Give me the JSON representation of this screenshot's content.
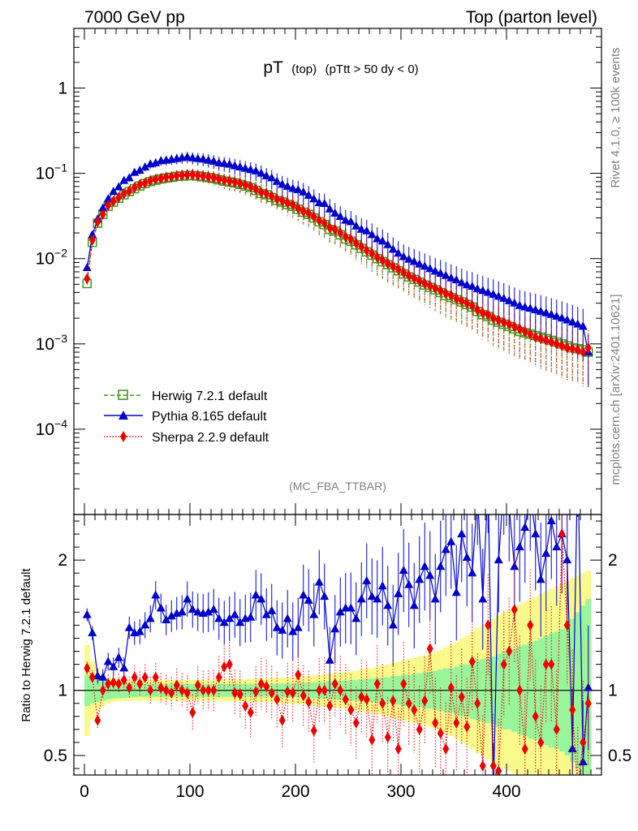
{
  "header": {
    "left": "7000 GeV pp",
    "right": "Top (parton level)"
  },
  "plot_title": {
    "main": "pT",
    "sub1": "(top)",
    "sub2": "(pTtt > 50 dy < 0)"
  },
  "side_labels": {
    "rivet": "Rivet 4.1.0, ≥ 100k events",
    "mcplots": "mcplots.cern.ch [arXiv:2401.10621]"
  },
  "analysis_tag": "(MC_FBA_TTBAR)",
  "ratio_ylabel": "Ratio to Herwig 7.2.1 default",
  "colors": {
    "herwig": "#3f9a1c",
    "pythia": "#0000cc",
    "sherpa": "#ee0000",
    "band_inner": "#99f599",
    "band_outer": "#fafa8c"
  },
  "chart_data": [
    {
      "type": "line",
      "panel": "main",
      "yscale": "log",
      "xlim": [
        -10,
        490
      ],
      "ylim": [
        1e-05,
        5
      ],
      "yticks": [
        {
          "value": 1,
          "label": "1"
        },
        {
          "value": 0.1,
          "label": "10",
          "exp": "−1"
        },
        {
          "value": 0.01,
          "label": "10",
          "exp": "−2"
        },
        {
          "value": 0.001,
          "label": "10",
          "exp": "−3"
        },
        {
          "value": 0.0001,
          "label": "10",
          "exp": "−4"
        }
      ],
      "legend_position": "lower-left",
      "x": [
        2.5,
        7.5,
        12.5,
        17.5,
        22.5,
        27.5,
        32.5,
        37.5,
        42.5,
        47.5,
        52.5,
        57.5,
        62.5,
        67.5,
        72.5,
        77.5,
        82.5,
        87.5,
        92.5,
        97.5,
        102.5,
        107.5,
        112.5,
        117.5,
        122.5,
        127.5,
        132.5,
        137.5,
        142.5,
        147.5,
        152.5,
        157.5,
        162.5,
        167.5,
        172.5,
        177.5,
        182.5,
        187.5,
        192.5,
        197.5,
        202.5,
        207.5,
        212.5,
        217.5,
        222.5,
        227.5,
        232.5,
        237.5,
        242.5,
        247.5,
        252.5,
        257.5,
        262.5,
        267.5,
        272.5,
        277.5,
        282.5,
        287.5,
        292.5,
        297.5,
        302.5,
        307.5,
        312.5,
        317.5,
        322.5,
        327.5,
        332.5,
        337.5,
        342.5,
        347.5,
        352.5,
        357.5,
        362.5,
        367.5,
        372.5,
        377.5,
        382.5,
        387.5,
        392.5,
        397.5,
        402.5,
        407.5,
        412.5,
        417.5,
        422.5,
        427.5,
        432.5,
        437.5,
        442.5,
        447.5,
        452.5,
        457.5,
        462.5,
        467.5,
        472.5,
        477.5
      ],
      "series": [
        {
          "name": "Herwig 7.2.1 default",
          "marker": "open-square",
          "style": "dashed",
          "values": [
            0.0051,
            0.0155,
            0.026,
            0.033,
            0.041,
            0.046,
            0.051,
            0.056,
            0.061,
            0.066,
            0.071,
            0.076,
            0.08,
            0.083,
            0.086,
            0.088,
            0.09,
            0.092,
            0.093,
            0.094,
            0.094,
            0.093,
            0.091,
            0.089,
            0.087,
            0.084,
            0.081,
            0.079,
            0.077,
            0.074,
            0.071,
            0.068,
            0.063,
            0.058,
            0.056,
            0.052,
            0.048,
            0.046,
            0.043,
            0.041,
            0.038,
            0.035,
            0.033,
            0.03,
            0.027,
            0.025,
            0.022,
            0.021,
            0.019,
            0.017,
            0.016,
            0.0145,
            0.0132,
            0.012,
            0.011,
            0.01,
            0.0092,
            0.0085,
            0.0078,
            0.0072,
            0.0066,
            0.0061,
            0.0057,
            0.0053,
            0.0049,
            0.0046,
            0.0043,
            0.004,
            0.0037,
            0.0035,
            0.0033,
            0.0031,
            0.0029,
            0.0027,
            0.0024,
            0.0022,
            0.0021,
            0.0019,
            0.0018,
            0.0017,
            0.0016,
            0.0015,
            0.0014,
            0.00135,
            0.0013,
            0.00125,
            0.0012,
            0.00115,
            0.0011,
            0.00105,
            0.001,
            0.00095,
            0.0009,
            0.00088,
            0.00085,
            0.0008
          ]
        },
        {
          "name": "Pythia 8.165 default",
          "marker": "filled-triangle",
          "style": "solid",
          "values": [
            0.0078,
            0.019,
            0.029,
            0.039,
            0.05,
            0.061,
            0.069,
            0.082,
            0.088,
            0.102,
            0.108,
            0.118,
            0.128,
            0.132,
            0.14,
            0.142,
            0.145,
            0.148,
            0.152,
            0.155,
            0.151,
            0.148,
            0.146,
            0.142,
            0.138,
            0.132,
            0.13,
            0.127,
            0.122,
            0.118,
            0.114,
            0.11,
            0.106,
            0.1,
            0.093,
            0.088,
            0.08,
            0.074,
            0.07,
            0.066,
            0.064,
            0.06,
            0.055,
            0.05,
            0.045,
            0.044,
            0.038,
            0.034,
            0.031,
            0.028,
            0.027,
            0.024,
            0.022,
            0.021,
            0.019,
            0.017,
            0.016,
            0.0145,
            0.0128,
            0.0115,
            0.0105,
            0.0098,
            0.0092,
            0.0086,
            0.0081,
            0.0076,
            0.0071,
            0.0067,
            0.0063,
            0.0059,
            0.0056,
            0.0052,
            0.0049,
            0.0047,
            0.0044,
            0.0042,
            0.004,
            0.0038,
            0.0036,
            0.0034,
            0.0032,
            0.003,
            0.0028,
            0.0027,
            0.0026,
            0.0025,
            0.0024,
            0.0023,
            0.0022,
            0.0021,
            0.002,
            0.0019,
            0.0018,
            0.0017,
            0.0016,
            0.0008
          ]
        },
        {
          "name": "Sherpa 2.2.9 default",
          "marker": "filled-diamond",
          "style": "dotted",
          "values": [
            0.0058,
            0.0165,
            0.027,
            0.033,
            0.042,
            0.047,
            0.052,
            0.058,
            0.062,
            0.068,
            0.074,
            0.077,
            0.082,
            0.085,
            0.087,
            0.09,
            0.091,
            0.094,
            0.095,
            0.096,
            0.097,
            0.094,
            0.093,
            0.091,
            0.089,
            0.086,
            0.083,
            0.081,
            0.079,
            0.076,
            0.073,
            0.07,
            0.065,
            0.06,
            0.058,
            0.054,
            0.05,
            0.048,
            0.045,
            0.043,
            0.039,
            0.036,
            0.034,
            0.031,
            0.028,
            0.026,
            0.023,
            0.022,
            0.02,
            0.018,
            0.0168,
            0.0152,
            0.0138,
            0.0125,
            0.0115,
            0.0104,
            0.0096,
            0.0088,
            0.0081,
            0.0075,
            0.0069,
            0.0063,
            0.0059,
            0.0055,
            0.0051,
            0.0048,
            0.0045,
            0.0042,
            0.0039,
            0.0037,
            0.0034,
            0.0032,
            0.003,
            0.0028,
            0.0025,
            0.0023,
            0.0022,
            0.002,
            0.0019,
            0.0018,
            0.0017,
            0.0016,
            0.0015,
            0.0014,
            0.0013,
            0.0012,
            0.00115,
            0.0011,
            0.00105,
            0.001,
            0.00095,
            0.0009,
            0.00088,
            0.00085,
            0.0008,
            0.0009
          ]
        }
      ]
    },
    {
      "type": "line",
      "panel": "ratio",
      "title": "Ratio to Herwig 7.2.1 default",
      "xlim": [
        -10,
        490
      ],
      "ylim": [
        0.35,
        2.35
      ],
      "xticks": [
        0,
        100,
        200,
        300,
        400
      ],
      "yticks": [
        {
          "value": 2,
          "label": "2"
        },
        {
          "value": 1,
          "label": "1"
        },
        {
          "value": 0.5,
          "label": "0.5"
        }
      ],
      "reference_line": 1,
      "bands": {
        "inner": "statistical uncertainty",
        "outer": "total uncertainty",
        "inner_halfwidth": [
          0.12,
          0.1,
          0.09,
          0.08,
          0.07,
          0.065,
          0.06,
          0.06,
          0.055,
          0.055,
          0.05,
          0.05,
          0.05,
          0.05,
          0.05,
          0.05,
          0.05,
          0.05,
          0.05,
          0.05,
          0.05,
          0.05,
          0.05,
          0.05,
          0.05,
          0.05,
          0.05,
          0.05,
          0.05,
          0.05,
          0.05,
          0.05,
          0.05,
          0.05,
          0.05,
          0.05,
          0.05,
          0.055,
          0.055,
          0.055,
          0.055,
          0.06,
          0.06,
          0.06,
          0.065,
          0.065,
          0.07,
          0.07,
          0.075,
          0.075,
          0.08,
          0.08,
          0.085,
          0.09,
          0.09,
          0.095,
          0.1,
          0.1,
          0.11,
          0.11,
          0.12,
          0.12,
          0.13,
          0.13,
          0.14,
          0.14,
          0.15,
          0.16,
          0.17,
          0.17,
          0.18,
          0.2,
          0.2,
          0.22,
          0.23,
          0.24,
          0.25,
          0.26,
          0.28,
          0.3,
          0.3,
          0.32,
          0.34,
          0.35,
          0.37,
          0.38,
          0.4,
          0.42,
          0.44,
          0.45,
          0.47,
          0.5,
          0.55,
          0.6,
          0.65,
          0.7
        ],
        "outer_halfwidth": [
          0.35,
          0.22,
          0.16,
          0.12,
          0.1,
          0.09,
          0.085,
          0.08,
          0.08,
          0.08,
          0.08,
          0.08,
          0.08,
          0.08,
          0.08,
          0.08,
          0.08,
          0.08,
          0.08,
          0.08,
          0.08,
          0.08,
          0.08,
          0.08,
          0.08,
          0.08,
          0.085,
          0.085,
          0.085,
          0.085,
          0.085,
          0.09,
          0.09,
          0.09,
          0.09,
          0.095,
          0.095,
          0.1,
          0.1,
          0.1,
          0.105,
          0.11,
          0.11,
          0.115,
          0.12,
          0.125,
          0.13,
          0.13,
          0.135,
          0.14,
          0.15,
          0.15,
          0.16,
          0.17,
          0.17,
          0.18,
          0.19,
          0.2,
          0.21,
          0.22,
          0.23,
          0.24,
          0.25,
          0.26,
          0.27,
          0.28,
          0.3,
          0.31,
          0.33,
          0.35,
          0.37,
          0.4,
          0.42,
          0.45,
          0.48,
          0.5,
          0.53,
          0.55,
          0.58,
          0.6,
          0.62,
          0.64,
          0.66,
          0.68,
          0.7,
          0.72,
          0.74,
          0.76,
          0.78,
          0.8,
          0.82,
          0.84,
          0.86,
          0.88,
          0.9,
          0.92
        ]
      },
      "series": [
        {
          "name": "Pythia 8.165 default",
          "marker": "filled-triangle",
          "values": [
            1.58,
            1.44,
            1.11,
            1.1,
            1.22,
            1.18,
            1.25,
            1.17,
            1.48,
            1.44,
            1.45,
            1.5,
            1.55,
            1.73,
            1.63,
            1.54,
            1.57,
            1.59,
            1.6,
            1.7,
            1.62,
            1.6,
            1.59,
            1.6,
            1.62,
            1.55,
            1.52,
            1.55,
            1.58,
            1.52,
            1.55,
            1.56,
            1.73,
            1.7,
            1.58,
            1.61,
            1.48,
            1.46,
            1.55,
            1.45,
            1.48,
            1.73,
            1.69,
            1.58,
            1.83,
            1.72,
            1.23,
            1.47,
            1.6,
            1.63,
            1.63,
            1.55,
            1.7,
            1.84,
            1.72,
            1.7,
            1.8,
            1.65,
            1.5,
            1.74,
            1.92,
            1.81,
            1.65,
            1.85,
            1.95,
            1.88,
            1.7,
            1.95,
            2.08,
            2.14,
            1.75,
            2.2,
            2.02,
            1.9,
            2.5,
            1.7,
            2.6,
            0.2,
            2.0,
            2.6,
            2.4,
            1.95,
            2.1,
            2.25,
            2.5,
            2.2,
            1.85,
            2.05,
            2.3,
            2.1,
            2.2,
            2.0,
            0.55,
            2.8,
            0.45,
            1.02
          ]
        },
        {
          "name": "Sherpa 2.2.9 default",
          "marker": "filled-diamond",
          "values": [
            1.17,
            1.1,
            0.77,
            1.0,
            1.05,
            1.06,
            1.05,
            1.08,
            1.02,
            1.1,
            1.05,
            1.1,
            1.0,
            1.1,
            1.02,
            1.0,
            0.98,
            1.04,
            1.0,
            0.98,
            0.83,
            1.04,
            1.0,
            1.0,
            1.0,
            1.1,
            1.18,
            1.2,
            0.98,
            0.97,
            0.88,
            0.83,
            0.99,
            1.05,
            1.03,
            0.98,
            0.93,
            0.77,
            0.99,
            0.98,
            1.12,
            0.96,
            0.91,
            0.69,
            1.0,
            1.0,
            0.88,
            1.05,
            1.0,
            0.93,
            0.85,
            0.75,
            0.95,
            0.93,
            0.62,
            1.05,
            0.9,
            0.64,
            0.92,
            0.55,
            1.05,
            0.9,
            0.85,
            0.7,
            0.92,
            1.32,
            0.75,
            0.67,
            0.55,
            1.02,
            0.75,
            0.95,
            0.72,
            1.22,
            0.9,
            0.42,
            1.5,
            0.42,
            0.38,
            1.2,
            1.3,
            1.62,
            1.0,
            0.55,
            1.5,
            0.8,
            0.6,
            1.2,
            1.2,
            0.7,
            2.2,
            1.5,
            0.85,
            0.25,
            0.6,
            0.9
          ]
        }
      ]
    }
  ]
}
